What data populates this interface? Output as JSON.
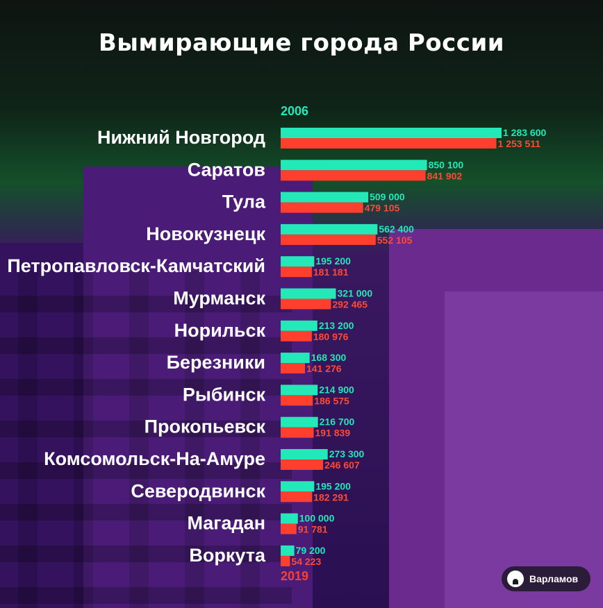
{
  "colors": {
    "year_2006": "#23e8b8",
    "year_2019": "#ff3f2e",
    "label": "#ffffff"
  },
  "brand": {
    "name": "Варламов",
    "icon": "varlamov-logo-icon"
  },
  "chart_data": {
    "type": "bar",
    "orientation": "horizontal",
    "title": "Вымирающие города России",
    "legend": [
      "2006",
      "2019"
    ],
    "categories": [
      "Нижний Новгород",
      "Саратов",
      "Тула",
      "Новокузнецк",
      "Петропавловск-Камчатский",
      "Мурманск",
      "Норильск",
      "Березники",
      "Рыбинск",
      "Прокопьевск",
      "Комсомольск-На-Амуре",
      "Северодвинск",
      "Магадан",
      "Воркута"
    ],
    "series": [
      {
        "name": "2006",
        "values": [
          1283600,
          850100,
          509000,
          562400,
          195200,
          321000,
          213200,
          168300,
          214900,
          216700,
          273300,
          195200,
          100000,
          79200
        ],
        "labels": [
          "1 283 600",
          "850 100",
          "509 000",
          "562 400",
          "195 200",
          "321 000",
          "213 200",
          "168 300",
          "214 900",
          "216 700",
          "273 300",
          "195 200",
          "100 000",
          "79 200"
        ]
      },
      {
        "name": "2019",
        "values": [
          1253511,
          841902,
          479105,
          552105,
          181181,
          292465,
          180976,
          141276,
          186575,
          191839,
          246607,
          182291,
          91781,
          54223
        ],
        "labels": [
          "1 253 511",
          "841 902",
          "479 105",
          "552 105",
          "181 181",
          "292 465",
          "180 976",
          "141 276",
          "186 575",
          "191 839",
          "246 607",
          "182 291",
          "91 781",
          "54 223"
        ]
      }
    ],
    "xlim": [
      0,
      1283600
    ],
    "grid": false
  }
}
